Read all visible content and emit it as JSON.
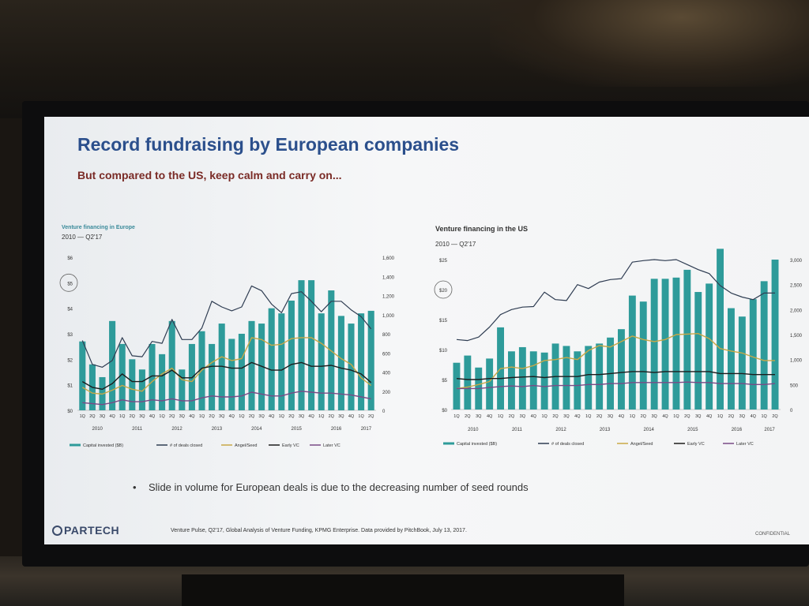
{
  "slide": {
    "title": "Record fundraising by European companies",
    "subtitle": "But compared to the US, keep calm and carry on...",
    "bullet": "Slide in volume for European deals is due to the decreasing number of seed rounds",
    "logo_text": "PARTECH",
    "source_note": "Venture Pulse, Q2'17, Global Analysis of Venture Funding, KPMG Enterprise. Data provided by PitchBook, July 13, 2017.",
    "confidential": "CONFIDENTIAL"
  },
  "colors": {
    "title": "#2b4f8c",
    "subtitle": "#7a2b26",
    "bar": "#2e9b9a",
    "deals_line": "#2f3d52",
    "angel_seed": "#c9a846",
    "early_vc": "#1c1c1c",
    "later_vc": "#7a4a86"
  },
  "chart_data": [
    {
      "type": "bar",
      "title": "Venture financing in Europe",
      "subtitle": "2010 — Q2'17",
      "categories": [
        "1Q",
        "2Q",
        "3Q",
        "4Q",
        "1Q",
        "2Q",
        "3Q",
        "4Q",
        "1Q",
        "2Q",
        "3Q",
        "4Q",
        "1Q",
        "2Q",
        "3Q",
        "4Q",
        "1Q",
        "2Q",
        "3Q",
        "4Q",
        "1Q",
        "2Q",
        "3Q",
        "4Q",
        "1Q",
        "2Q",
        "3Q",
        "4Q",
        "1Q",
        "2Q"
      ],
      "year_labels": [
        "2010",
        "2011",
        "2012",
        "2013",
        "2014",
        "2015",
        "2016",
        "2017"
      ],
      "y_left_ticks": [
        "$0",
        "$1",
        "$2",
        "$3",
        "$4",
        "$5",
        "$6"
      ],
      "y_right_ticks": [
        "0",
        "200",
        "400",
        "600",
        "800",
        "1,000",
        "1,200",
        "1,400",
        "1,600"
      ],
      "ylim_left": [
        0,
        6
      ],
      "ylim_right": [
        0,
        1600
      ],
      "highlight_tick": "$5",
      "legend": [
        "Capital invested ($B)",
        "# of deals closed",
        "Angel/Seed",
        "Early VC",
        "Later VC"
      ],
      "series": [
        {
          "name": "Capital invested ($B)",
          "kind": "bar",
          "axis": "left",
          "values": [
            2.7,
            1.8,
            1.3,
            3.5,
            2.6,
            2.0,
            1.6,
            2.6,
            2.2,
            3.5,
            1.6,
            2.6,
            3.1,
            2.6,
            3.4,
            2.8,
            3.0,
            3.5,
            3.4,
            4.0,
            3.8,
            4.3,
            5.1,
            5.1,
            3.8,
            4.7,
            3.7,
            3.4,
            3.8,
            3.9
          ]
        },
        {
          "name": "# of deals closed",
          "kind": "line",
          "axis": "right",
          "values": [
            730,
            480,
            450,
            520,
            760,
            570,
            560,
            720,
            700,
            950,
            740,
            740,
            860,
            1140,
            1080,
            1040,
            1080,
            1300,
            1250,
            1110,
            1020,
            1220,
            1240,
            1140,
            1030,
            1140,
            1140,
            1050,
            980,
            850
          ]
        },
        {
          "name": "Angel/Seed",
          "kind": "line",
          "axis": "right",
          "values": [
            240,
            180,
            170,
            210,
            260,
            220,
            200,
            300,
            380,
            440,
            320,
            300,
            420,
            500,
            560,
            520,
            540,
            760,
            740,
            680,
            690,
            750,
            760,
            760,
            700,
            620,
            540,
            480,
            340,
            260
          ]
        },
        {
          "name": "Early VC",
          "kind": "line",
          "axis": "right",
          "values": [
            300,
            240,
            220,
            280,
            380,
            300,
            300,
            360,
            360,
            420,
            340,
            340,
            440,
            460,
            460,
            440,
            440,
            500,
            460,
            420,
            420,
            480,
            500,
            460,
            460,
            470,
            440,
            420,
            380,
            290
          ]
        },
        {
          "name": "Later VC",
          "kind": "line",
          "axis": "right",
          "values": [
            80,
            70,
            60,
            80,
            110,
            90,
            90,
            110,
            100,
            120,
            100,
            100,
            130,
            150,
            140,
            140,
            150,
            190,
            170,
            150,
            150,
            180,
            200,
            190,
            180,
            180,
            170,
            160,
            140,
            120
          ]
        }
      ]
    },
    {
      "type": "bar",
      "title": "Venture financing in the US",
      "subtitle": "2010 — Q2'17",
      "categories": [
        "1Q",
        "2Q",
        "3Q",
        "4Q",
        "1Q",
        "2Q",
        "3Q",
        "4Q",
        "1Q",
        "2Q",
        "3Q",
        "4Q",
        "1Q",
        "2Q",
        "3Q",
        "4Q",
        "1Q",
        "2Q",
        "3Q",
        "4Q",
        "1Q",
        "2Q",
        "3Q",
        "4Q",
        "1Q",
        "2Q",
        "3Q",
        "4Q",
        "1Q",
        "2Q"
      ],
      "year_labels": [
        "2010",
        "2011",
        "2012",
        "2013",
        "2014",
        "2015",
        "2016",
        "2017"
      ],
      "y_left_ticks": [
        "$0",
        "$5",
        "$10",
        "$15",
        "$20",
        "$25"
      ],
      "y_right_ticks": [
        "0",
        "500",
        "1,000",
        "1,500",
        "2,000",
        "2,500",
        "3,000"
      ],
      "ylim_left": [
        0,
        25
      ],
      "ylim_right": [
        0,
        3000
      ],
      "highlight_tick": "$20",
      "legend": [
        "Capital invested ($B)",
        "# of deals closed",
        "Angel/Seed",
        "Early VC",
        "Later VC"
      ],
      "series": [
        {
          "name": "Capital invested ($B)",
          "kind": "bar",
          "axis": "left",
          "values": [
            7.8,
            9.0,
            7.0,
            8.5,
            13.7,
            9.7,
            10.4,
            9.7,
            9.5,
            11.0,
            10.6,
            9.7,
            10.6,
            11.0,
            12.0,
            13.4,
            19.0,
            18.0,
            21.8,
            21.8,
            22.0,
            23.3,
            19.6,
            21.0,
            26.8,
            16.9,
            15.5,
            18.4,
            21.4,
            25.0
          ]
        },
        {
          "name": "# of deals closed",
          "kind": "line",
          "axis": "right",
          "values": [
            1400,
            1380,
            1450,
            1650,
            1900,
            2000,
            2050,
            2060,
            2350,
            2200,
            2180,
            2500,
            2420,
            2550,
            2600,
            2620,
            2950,
            2980,
            3000,
            2980,
            3000,
            2900,
            2800,
            2720,
            2480,
            2330,
            2250,
            2200,
            2330,
            2330
          ]
        },
        {
          "name": "Angel/Seed",
          "kind": "line",
          "axis": "right",
          "values": [
            420,
            450,
            500,
            560,
            820,
            850,
            820,
            880,
            980,
            1000,
            1040,
            1000,
            1180,
            1280,
            1250,
            1360,
            1470,
            1400,
            1360,
            1400,
            1500,
            1510,
            1520,
            1420,
            1220,
            1170,
            1130,
            1050,
            980,
            980
          ]
        },
        {
          "name": "Early VC",
          "kind": "line",
          "axis": "right",
          "values": [
            620,
            600,
            600,
            620,
            620,
            640,
            650,
            660,
            640,
            660,
            660,
            660,
            700,
            700,
            720,
            740,
            760,
            760,
            740,
            760,
            760,
            760,
            760,
            760,
            720,
            720,
            720,
            700,
            700,
            700
          ]
        },
        {
          "name": "Later VC",
          "kind": "line",
          "axis": "right",
          "values": [
            420,
            420,
            420,
            440,
            460,
            470,
            460,
            480,
            460,
            480,
            480,
            480,
            500,
            500,
            520,
            520,
            540,
            540,
            540,
            540,
            540,
            550,
            540,
            540,
            520,
            520,
            520,
            500,
            500,
            520
          ]
        }
      ]
    }
  ]
}
